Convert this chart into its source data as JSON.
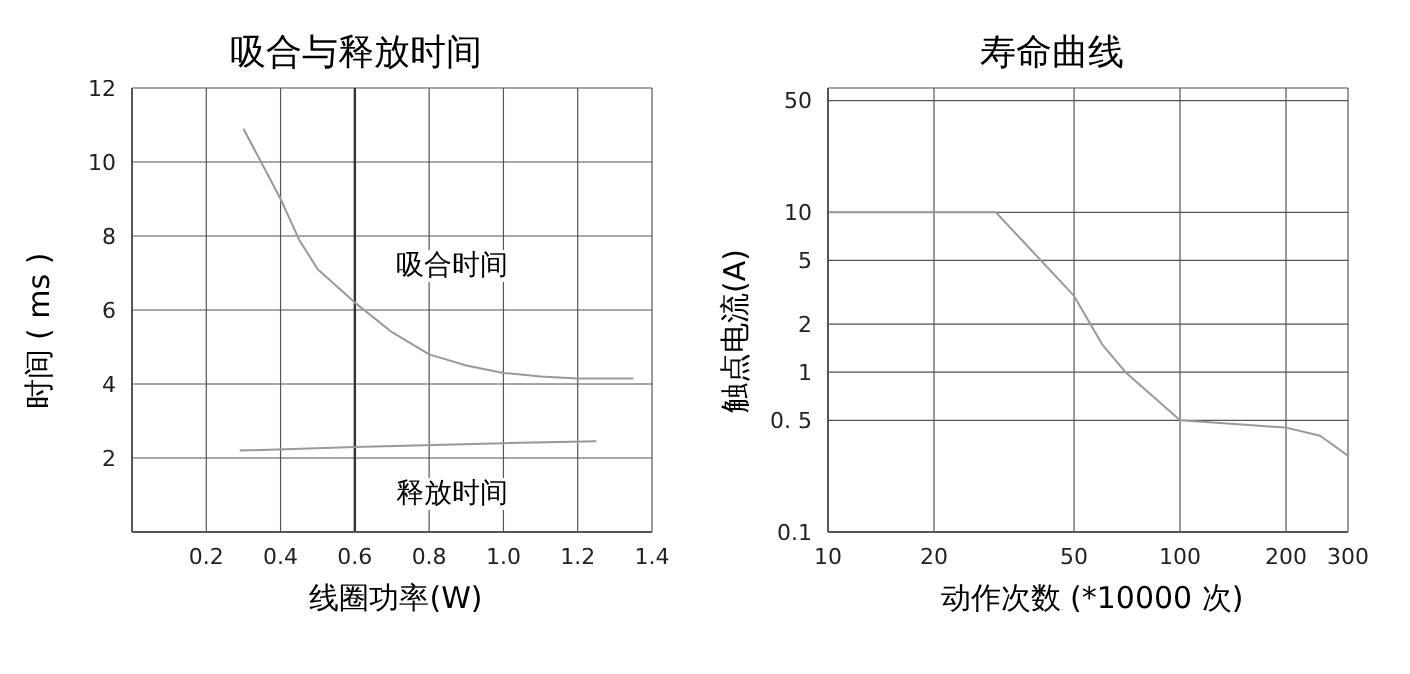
{
  "chart_data": [
    {
      "type": "line",
      "title": "吸合与释放时间",
      "xlabel": "线圈功率(W)",
      "ylabel": "时间 ( ms )",
      "xlim": [
        0,
        1.4
      ],
      "xticks": [
        0.2,
        0.4,
        0.6,
        0.8,
        {
          "value": 1,
          "label": "1.0"
        },
        1.2,
        1.4
      ],
      "ylim": [
        0,
        12
      ],
      "yticks": [
        2,
        4,
        6,
        8,
        10,
        12
      ],
      "grid": true,
      "marker": "none",
      "line_style": "solid",
      "series": [
        {
          "color": "#999999",
          "x": [
            0.3,
            0.4,
            0.45,
            0.5,
            0.6,
            0.7,
            0.8,
            0.9,
            1.0,
            1.1,
            1.2,
            1.35
          ],
          "values": [
            10.9,
            9.0,
            7.9,
            7.1,
            6.2,
            5.4,
            4.8,
            4.5,
            4.3,
            4.2,
            4.15,
            4.15
          ]
        },
        {
          "color": "#999999",
          "x": [
            0.29,
            0.6,
            1.0,
            1.25
          ],
          "values": [
            2.2,
            2.3,
            2.4,
            2.45
          ]
        }
      ],
      "ref_lines": [
        {
          "axis": "x",
          "value": 0.6,
          "color": "#333333"
        }
      ],
      "annotations": [
        "吸合时间",
        "释放时间"
      ]
    },
    {
      "type": "line",
      "title": "寿命曲线",
      "xlabel": "动作次数 (*10000 次)",
      "ylabel": "触点电流(A)",
      "log": "xy",
      "xlim": [
        10,
        300
      ],
      "xticks": [
        10,
        20,
        50,
        100,
        200,
        300
      ],
      "ylim": [
        0.1,
        60
      ],
      "yticks": [
        0.1,
        {
          "value": 0.5,
          "label": "0. 5"
        },
        1,
        2,
        5,
        10,
        50
      ],
      "grid": true,
      "marker": "none",
      "line_style": "solid",
      "series": [
        {
          "color": "#999999",
          "x": [
            10,
            30,
            50,
            60,
            70,
            100,
            150,
            200,
            250,
            300
          ],
          "values": [
            10,
            10,
            3,
            1.5,
            1,
            0.5,
            0.47,
            0.45,
            0.4,
            0.3
          ]
        }
      ]
    }
  ]
}
